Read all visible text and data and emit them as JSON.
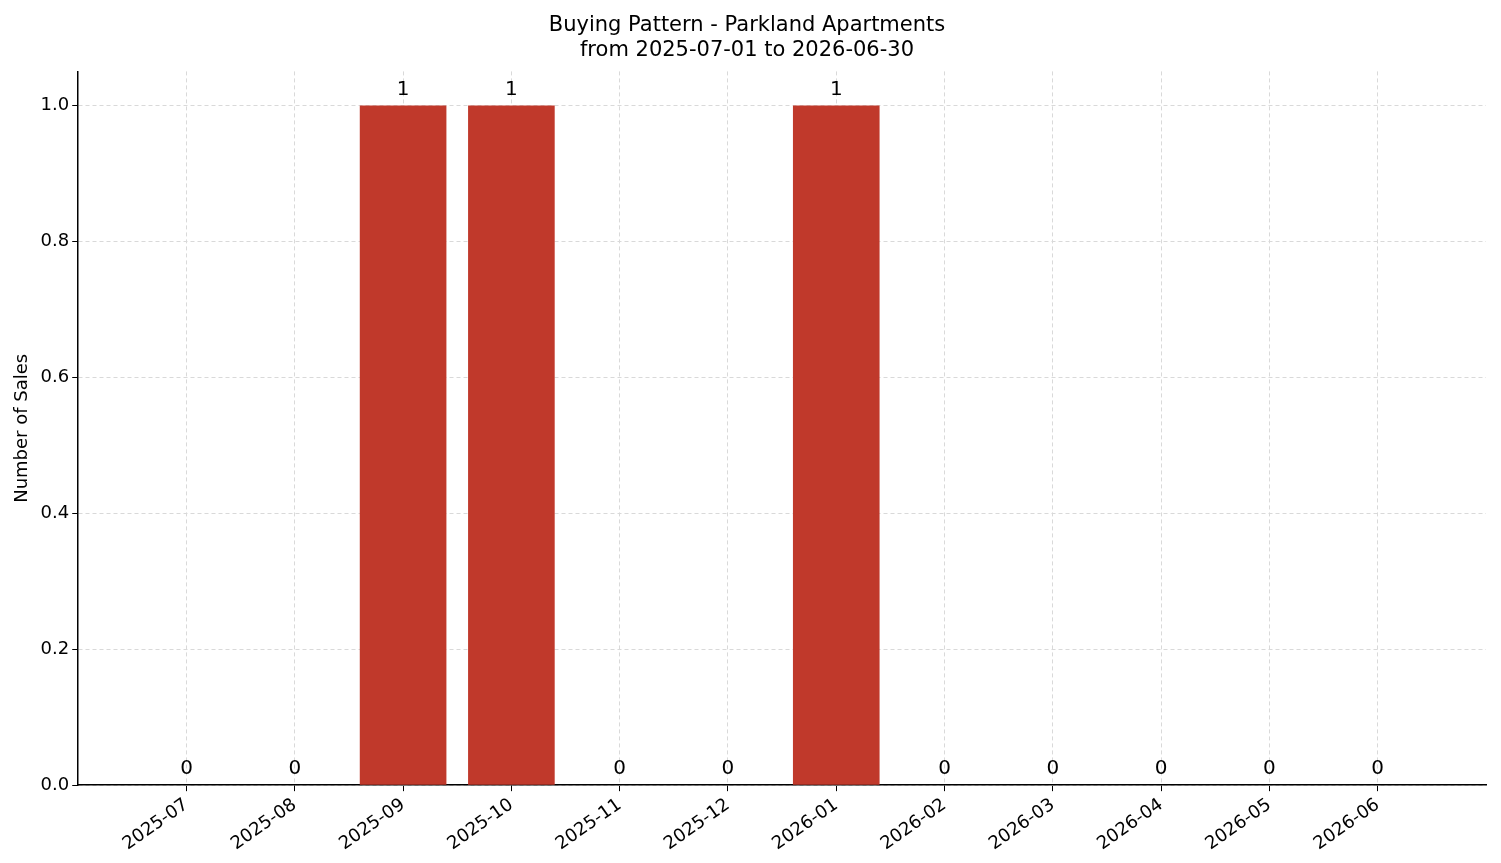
{
  "chart_data": {
    "type": "bar",
    "title": "Buying Pattern - Parkland Apartments",
    "subtitle": "from 2025-07-01 to 2026-06-30",
    "ylabel": "Number of Sales",
    "categories": [
      "2025-07",
      "2025-08",
      "2025-09",
      "2025-10",
      "2025-11",
      "2025-12",
      "2026-01",
      "2026-02",
      "2026-03",
      "2026-04",
      "2026-05",
      "2026-06"
    ],
    "values": [
      0,
      0,
      1,
      1,
      0,
      0,
      1,
      0,
      0,
      0,
      0,
      0
    ],
    "color": "#c0392b",
    "ylim": [
      0,
      1.05
    ],
    "yticks": [
      {
        "value": 0,
        "label": "0.0"
      },
      0.2,
      0.4,
      0.6,
      0.8,
      {
        "value": 1,
        "label": "1.0"
      }
    ],
    "grid": true,
    "data_labels": true,
    "legend": false
  }
}
